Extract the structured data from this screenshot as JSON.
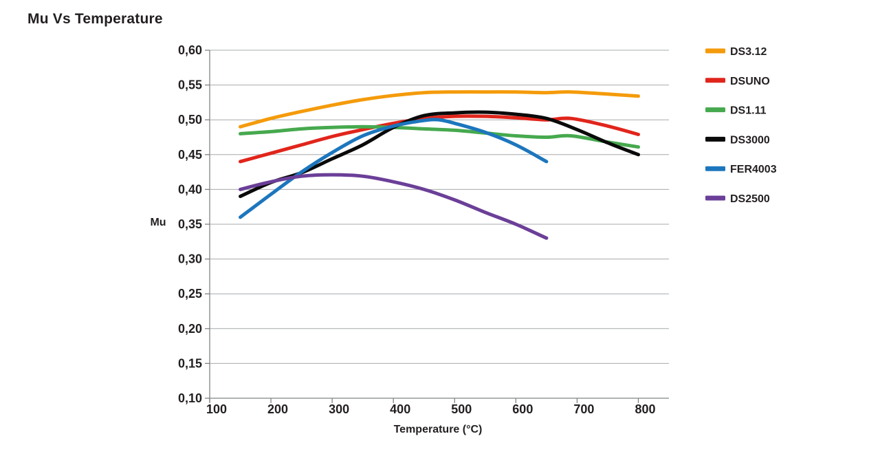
{
  "page": {
    "title": "Mu Vs Temperature"
  },
  "colors": {
    "text": "#231f20",
    "grid": "#a6a8ab",
    "axis": "#808285",
    "background": "#ffffff"
  },
  "chart_data": {
    "type": "line",
    "title": "Mu Vs Temperature",
    "xlabel": "Temperature (°C)",
    "ylabel": "Mu",
    "xlim": [
      100,
      850
    ],
    "ylim": [
      0.1,
      0.6
    ],
    "x_ticks": [
      100,
      200,
      300,
      400,
      500,
      600,
      700,
      800
    ],
    "y_ticks": [
      0.6,
      0.55,
      0.5,
      0.45,
      0.4,
      0.35,
      0.3,
      0.25,
      0.2,
      0.15,
      0.1
    ],
    "y_tick_labels": [
      "0,60",
      "0,55",
      "0,50",
      "0,45",
      "0,40",
      "0,35",
      "0,30",
      "0,25",
      "0,20",
      "0,15",
      "0,10"
    ],
    "grid": "horizontal",
    "legend_position": "right",
    "series": [
      {
        "name": "DS3.12",
        "color": "#F49B0B",
        "x": [
          150,
          200,
          250,
          300,
          350,
          400,
          450,
          500,
          550,
          600,
          650,
          690,
          750,
          800
        ],
        "y": [
          0.49,
          0.502,
          0.512,
          0.521,
          0.529,
          0.535,
          0.539,
          0.54,
          0.54,
          0.54,
          0.539,
          0.54,
          0.537,
          0.534
        ]
      },
      {
        "name": "DSUNO",
        "color": "#E1251B",
        "x": [
          150,
          200,
          250,
          300,
          350,
          400,
          450,
          500,
          550,
          600,
          650,
          690,
          750,
          800
        ],
        "y": [
          0.44,
          0.452,
          0.464,
          0.476,
          0.486,
          0.495,
          0.502,
          0.505,
          0.505,
          0.503,
          0.5,
          0.502,
          0.491,
          0.479
        ]
      },
      {
        "name": "DS1.11",
        "color": "#46A94E",
        "x": [
          150,
          200,
          250,
          300,
          350,
          400,
          450,
          500,
          550,
          600,
          650,
          690,
          750,
          800
        ],
        "y": [
          0.48,
          0.483,
          0.487,
          0.489,
          0.49,
          0.489,
          0.487,
          0.485,
          0.481,
          0.477,
          0.475,
          0.477,
          0.468,
          0.461
        ]
      },
      {
        "name": "DS3000",
        "color": "#0a0a0a",
        "x": [
          150,
          200,
          250,
          300,
          350,
          400,
          450,
          500,
          550,
          600,
          650,
          700,
          750,
          800
        ],
        "y": [
          0.39,
          0.41,
          0.424,
          0.444,
          0.464,
          0.489,
          0.506,
          0.51,
          0.511,
          0.508,
          0.502,
          0.486,
          0.467,
          0.45
        ]
      },
      {
        "name": "FER4003",
        "color": "#1C76BD",
        "x": [
          150,
          200,
          250,
          300,
          350,
          400,
          450,
          475,
          500,
          550,
          600,
          650
        ],
        "y": [
          0.36,
          0.393,
          0.425,
          0.453,
          0.477,
          0.491,
          0.499,
          0.5,
          0.495,
          0.482,
          0.464,
          0.44
        ]
      },
      {
        "name": "DS2500",
        "color": "#6B3F98",
        "x": [
          150,
          200,
          250,
          300,
          350,
          400,
          450,
          500,
          550,
          600,
          650
        ],
        "y": [
          0.4,
          0.411,
          0.419,
          0.421,
          0.419,
          0.411,
          0.4,
          0.385,
          0.367,
          0.35,
          0.33
        ]
      }
    ]
  }
}
